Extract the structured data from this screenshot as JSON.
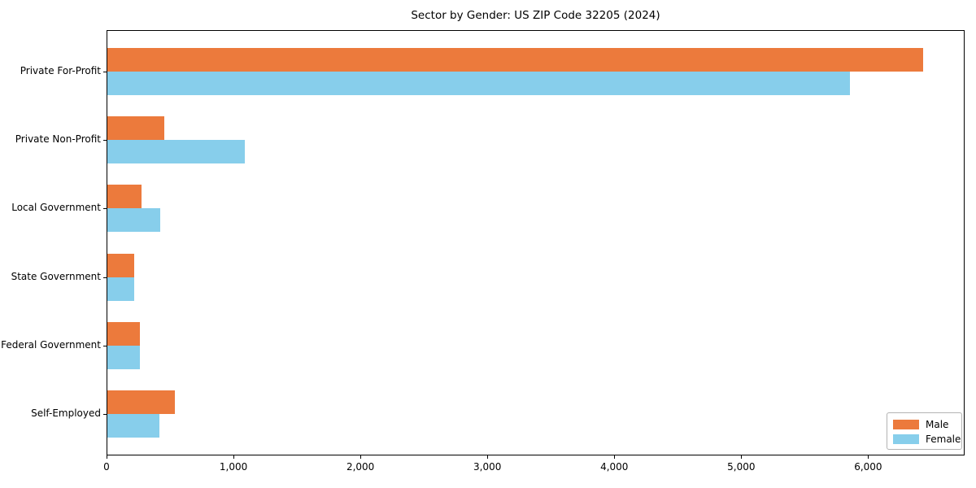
{
  "chart_data": {
    "type": "bar",
    "orientation": "horizontal",
    "title": "Sector by Gender: US ZIP Code 32205 (2024)",
    "categories": [
      "Private For-Profit",
      "Private Non-Profit",
      "Local Government",
      "State Government",
      "Federal Government",
      "Self-Employed"
    ],
    "series": [
      {
        "name": "Male",
        "color": "#ec7a3c",
        "values": [
          6435,
          455,
          275,
          220,
          260,
          540
        ]
      },
      {
        "name": "Female",
        "color": "#87ceeb",
        "values": [
          5855,
          1090,
          425,
          215,
          260,
          415
        ]
      }
    ],
    "xlabel": "",
    "ylabel": "",
    "xlim": [
      0,
      6760
    ],
    "xticks": [
      0,
      1000,
      2000,
      3000,
      4000,
      5000,
      6000
    ],
    "xtick_labels": [
      "0",
      "1,000",
      "2,000",
      "3,000",
      "4,000",
      "5,000",
      "6,000"
    ],
    "legend_position": "lower right",
    "grid": false
  }
}
